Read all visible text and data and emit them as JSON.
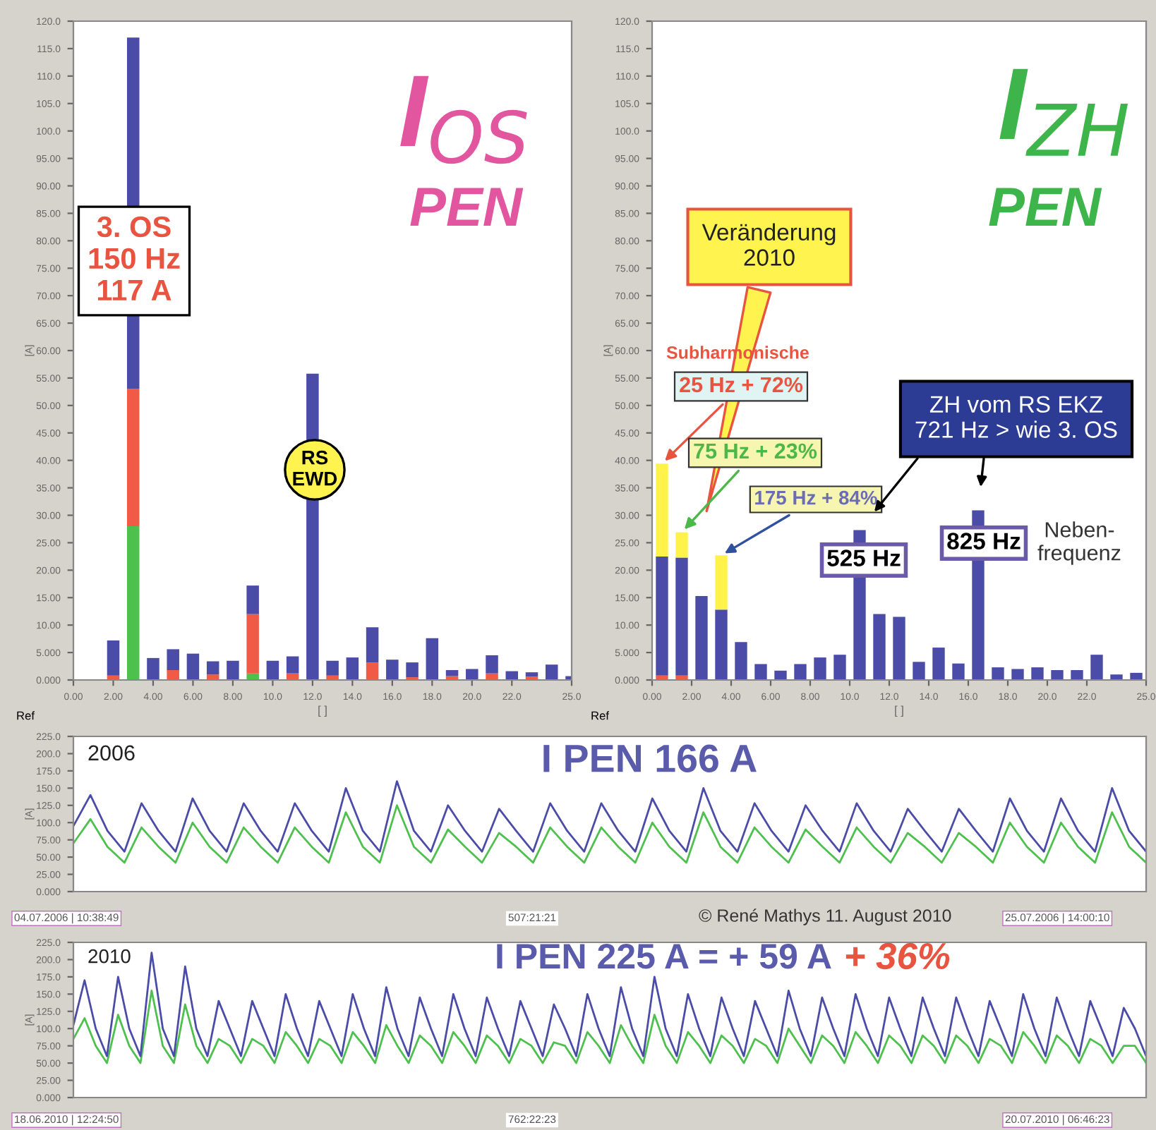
{
  "chart_data": [
    {
      "type": "bar",
      "title": "I$_{OS}$",
      "subtitle": "PEN",
      "xlabel": "[ ]",
      "ylabel": "[A]",
      "stacked": true,
      "x": [
        2,
        3,
        4,
        5,
        6,
        7,
        8,
        9,
        10,
        11,
        12,
        13,
        14,
        15,
        16,
        17,
        18,
        19,
        20,
        21,
        22,
        23,
        24,
        25
      ],
      "series": [
        {
          "color": "#4ec04e",
          "values": [
            0,
            28,
            0,
            0,
            0,
            0,
            0,
            1.2,
            0,
            0,
            0,
            0,
            0,
            0,
            0,
            0,
            0,
            0,
            0,
            0,
            0,
            0,
            0,
            0
          ]
        },
        {
          "color": "#f05a46",
          "values": [
            0.8,
            25,
            0,
            1.8,
            0,
            1,
            0,
            10.8,
            0,
            1.2,
            0,
            0.8,
            0,
            3.2,
            0,
            0.5,
            0,
            0.7,
            0,
            1.2,
            0,
            0.6,
            0,
            0
          ]
        },
        {
          "color": "#4b4ba8",
          "values": [
            6.4,
            64,
            4,
            3.8,
            4.8,
            2.4,
            3.5,
            5.2,
            3.5,
            3.1,
            55.8,
            2.7,
            4.1,
            6.4,
            3.7,
            2.7,
            7.6,
            1.1,
            2,
            3.3,
            1.6,
            0.8,
            2.8,
            0.7
          ]
        }
      ],
      "xlim": [
        0,
        25
      ],
      "xticks": [
        {
          "value": 0,
          "label": "0.00"
        },
        {
          "value": 2,
          "label": "2.00"
        },
        {
          "value": 4,
          "label": "4.00"
        },
        {
          "value": 6,
          "label": "6.00"
        },
        {
          "value": 8,
          "label": "8.00"
        },
        {
          "value": 10,
          "label": "10.0"
        },
        {
          "value": 12,
          "label": "12.0"
        },
        {
          "value": 14,
          "label": "14.0"
        },
        {
          "value": 16,
          "label": "16.0"
        },
        {
          "value": 18,
          "label": "18.0"
        },
        {
          "value": 20,
          "label": "20.0"
        },
        {
          "value": 22,
          "label": "22.0"
        },
        {
          "value": 25,
          "label": "25.0"
        }
      ],
      "ylim": [
        0,
        120
      ],
      "yticks": [
        {
          "value": 0,
          "label": "0.000"
        },
        {
          "value": 5,
          "label": "5.000"
        },
        {
          "value": 10,
          "label": "10.00"
        },
        {
          "value": 15,
          "label": "15.00"
        },
        {
          "value": 20,
          "label": "20.00"
        },
        {
          "value": 25,
          "label": "25.00"
        },
        {
          "value": 30,
          "label": "30.00"
        },
        {
          "value": 35,
          "label": "35.00"
        },
        {
          "value": 40,
          "label": "40.00"
        },
        {
          "value": 45,
          "label": "45.00"
        },
        {
          "value": 50,
          "label": "50.00"
        },
        {
          "value": 55,
          "label": "55.00"
        },
        {
          "value": 60,
          "label": "60.00"
        },
        {
          "value": 65,
          "label": "65.00"
        },
        {
          "value": 70,
          "label": "70.00"
        },
        {
          "value": 75,
          "label": "75.00"
        },
        {
          "value": 80,
          "label": "80.00"
        },
        {
          "value": 85,
          "label": "85.00"
        },
        {
          "value": 90,
          "label": "90.00"
        },
        {
          "value": 95,
          "label": "95.00"
        },
        {
          "value": 100,
          "label": "100.0"
        },
        {
          "value": 105,
          "label": "105.0"
        },
        {
          "value": 110,
          "label": "110.0"
        },
        {
          "value": 115,
          "label": "115.0"
        },
        {
          "value": 120,
          "label": "120.0"
        }
      ],
      "annotations": [
        "3. OS\n150 Hz\n117 A",
        "RS\nEWD",
        "Ref"
      ]
    },
    {
      "type": "bar",
      "title": "I$_{ZH}$",
      "subtitle": "PEN",
      "xlabel": "[ ]",
      "ylabel": "[A]",
      "stacked": true,
      "x": [
        0.5,
        1.5,
        2.5,
        3.5,
        4.5,
        5.5,
        6.5,
        7.5,
        8.5,
        9.5,
        10.5,
        11.5,
        12.5,
        13.5,
        14.5,
        15.5,
        16.5,
        17.5,
        18.5,
        19.5,
        20.5,
        21.5,
        22.5,
        23.5,
        24.5
      ],
      "series": [
        {
          "color": "#f05a46",
          "values": [
            0.8,
            0.8,
            0,
            0,
            0,
            0,
            0,
            0,
            0,
            0,
            0,
            0,
            0,
            0,
            0,
            0,
            0,
            0,
            0,
            0,
            0,
            0,
            0,
            0,
            0
          ]
        },
        {
          "color": "#4b4ba8",
          "values": [
            21.7,
            21.5,
            15.3,
            12.8,
            6.9,
            2.9,
            1.7,
            2.9,
            4.1,
            4.6,
            27.3,
            12,
            11.5,
            3.3,
            5.9,
            3,
            30.9,
            2.3,
            2,
            2.3,
            1.8,
            1.8,
            4.6,
            1,
            1.3
          ]
        },
        {
          "color": "#fff24a",
          "values": [
            16.9,
            4.6,
            0,
            9.9,
            0,
            0,
            0,
            0,
            0,
            0,
            0,
            0,
            0,
            0,
            0,
            0,
            0,
            0,
            0,
            0,
            0,
            0,
            0,
            0,
            0
          ]
        }
      ],
      "xlim": [
        0,
        25
      ],
      "xticks": [
        {
          "value": 0,
          "label": "0.00"
        },
        {
          "value": 2,
          "label": "2.00"
        },
        {
          "value": 4,
          "label": "4.00"
        },
        {
          "value": 6,
          "label": "6.00"
        },
        {
          "value": 8,
          "label": "8.00"
        },
        {
          "value": 10,
          "label": "10.0"
        },
        {
          "value": 12,
          "label": "12.0"
        },
        {
          "value": 14,
          "label": "14.0"
        },
        {
          "value": 16,
          "label": "16.0"
        },
        {
          "value": 18,
          "label": "18.0"
        },
        {
          "value": 20,
          "label": "20.0"
        },
        {
          "value": 22,
          "label": "22.0"
        },
        {
          "value": 25,
          "label": "25.0"
        }
      ],
      "ylim": [
        0,
        120
      ],
      "yticks": [
        {
          "value": 0,
          "label": "0.000"
        },
        {
          "value": 5,
          "label": "5.000"
        },
        {
          "value": 10,
          "label": "10.00"
        },
        {
          "value": 15,
          "label": "15.00"
        },
        {
          "value": 20,
          "label": "20.00"
        },
        {
          "value": 25,
          "label": "25.00"
        },
        {
          "value": 30,
          "label": "30.00"
        },
        {
          "value": 35,
          "label": "35.00"
        },
        {
          "value": 40,
          "label": "40.00"
        },
        {
          "value": 45,
          "label": "45.00"
        },
        {
          "value": 50,
          "label": "50.00"
        },
        {
          "value": 55,
          "label": "55.00"
        },
        {
          "value": 60,
          "label": "60.00"
        },
        {
          "value": 65,
          "label": "65.00"
        },
        {
          "value": 70,
          "label": "70.00"
        },
        {
          "value": 75,
          "label": "75.00"
        },
        {
          "value": 80,
          "label": "80.00"
        },
        {
          "value": 85,
          "label": "85.00"
        },
        {
          "value": 90,
          "label": "90.00"
        },
        {
          "value": 95,
          "label": "95.00"
        },
        {
          "value": 100,
          "label": "100.0"
        },
        {
          "value": 105,
          "label": "105.0"
        },
        {
          "value": 110,
          "label": "110.0"
        },
        {
          "value": 115,
          "label": "115.0"
        },
        {
          "value": 120,
          "label": "120.0"
        }
      ],
      "annotations": [
        "Veränderung\n2010",
        "Subharmonische",
        {
          "text": "25 Hz + 72%",
          "x": 0.5,
          "y": 39.4
        },
        {
          "text": "75 Hz + 23%",
          "x": 1.5,
          "y": 26.9
        },
        {
          "text": "175 Hz + 84%",
          "x": 3.5,
          "y": 22.7
        },
        "ZH vom RS EKZ\n721 Hz > wie 3. OS",
        {
          "text": "525 Hz",
          "x": 10.5,
          "y": 27.3
        },
        {
          "text": "825 Hz",
          "x": 16.5,
          "y": 30.9
        },
        "Neben-\nfrequenz",
        "Ref"
      ]
    },
    {
      "type": "line",
      "title": "I PEN 166 A",
      "ylabel": "[A]",
      "tick_labels": "y",
      "categories": [
        null,
        null,
        null,
        null,
        null,
        null,
        null,
        null,
        null,
        null,
        null,
        null,
        null,
        null,
        null,
        null,
        null,
        null,
        null,
        null,
        null,
        null,
        null,
        null,
        null,
        null,
        null,
        null,
        null,
        null,
        null,
        null,
        null,
        null,
        null,
        null,
        null,
        null,
        null,
        null,
        null,
        null,
        null,
        null,
        null,
        null,
        null,
        null,
        null,
        null,
        null,
        null,
        null,
        null,
        null,
        null,
        null,
        null,
        null,
        null,
        null,
        null,
        null,
        null
      ],
      "series": [
        {
          "color": "#4ec04e",
          "values": [
            70,
            105,
            65,
            42,
            93,
            65,
            42,
            100,
            65,
            42,
            93,
            65,
            42,
            93,
            65,
            42,
            115,
            65,
            42,
            125,
            65,
            42,
            90,
            65,
            42,
            85,
            65,
            42,
            93,
            65,
            42,
            93,
            65,
            42,
            100,
            65,
            42,
            115,
            65,
            42,
            93,
            65,
            42,
            90,
            65,
            42,
            93,
            65,
            42,
            85,
            65,
            42,
            85,
            65,
            42,
            100,
            65,
            42,
            100,
            65,
            42,
            115,
            65,
            42
          ]
        },
        {
          "color": "#4b4ba8",
          "values": [
            95,
            140,
            88,
            58,
            128,
            88,
            58,
            135,
            88,
            58,
            128,
            88,
            58,
            128,
            88,
            58,
            150,
            88,
            58,
            160,
            88,
            58,
            125,
            88,
            58,
            120,
            88,
            58,
            128,
            88,
            58,
            128,
            88,
            58,
            135,
            88,
            58,
            150,
            88,
            58,
            128,
            88,
            58,
            125,
            88,
            58,
            128,
            88,
            58,
            120,
            88,
            58,
            120,
            88,
            58,
            135,
            88,
            58,
            135,
            88,
            58,
            150,
            88,
            58
          ]
        }
      ],
      "ylim": [
        0,
        225
      ],
      "yticks": [
        {
          "value": 0,
          "label": "0.000"
        },
        {
          "value": 25,
          "label": "25.00"
        },
        {
          "value": 50,
          "label": "50.00"
        },
        {
          "value": 75,
          "label": "75.00"
        },
        {
          "value": 100,
          "label": "100.0"
        },
        {
          "value": 125,
          "label": "125.0"
        },
        {
          "value": 150,
          "label": "150.0"
        },
        {
          "value": 175,
          "label": "175.0"
        },
        {
          "value": 200,
          "label": "200.0"
        },
        {
          "value": 225,
          "label": "225.0"
        }
      ],
      "annotations": [
        "2006",
        "04.07.2006 | 10:38:49",
        "507:21:21",
        "© René Mathys 11. August 2010",
        "25.07.2006 | 14:00:10"
      ]
    },
    {
      "type": "line",
      "title": "I PEN 225 A = + 59 A",
      "ylabel": "[A]",
      "tick_labels": "y",
      "categories": [
        null,
        null,
        null,
        null,
        null,
        null,
        null,
        null,
        null,
        null,
        null,
        null,
        null,
        null,
        null,
        null,
        null,
        null,
        null,
        null,
        null,
        null,
        null,
        null,
        null,
        null,
        null,
        null,
        null,
        null,
        null,
        null,
        null,
        null,
        null,
        null,
        null,
        null,
        null,
        null,
        null,
        null,
        null,
        null,
        null,
        null,
        null,
        null,
        null,
        null,
        null,
        null,
        null,
        null,
        null,
        null,
        null,
        null,
        null,
        null,
        null,
        null,
        null,
        null,
        null,
        null,
        null,
        null,
        null,
        null,
        null,
        null,
        null,
        null,
        null,
        null,
        null,
        null,
        null,
        null,
        null,
        null,
        null,
        null,
        null,
        null,
        null,
        null,
        null,
        null,
        null,
        null,
        null,
        null,
        null,
        null,
        null
      ],
      "series": [
        {
          "color": "#4ec04e",
          "values": [
            85,
            115,
            75,
            50,
            120,
            75,
            50,
            155,
            75,
            50,
            135,
            75,
            50,
            85,
            75,
            50,
            85,
            75,
            50,
            95,
            75,
            50,
            85,
            75,
            50,
            95,
            75,
            50,
            105,
            75,
            50,
            90,
            75,
            50,
            95,
            75,
            50,
            90,
            75,
            50,
            85,
            75,
            50,
            80,
            75,
            50,
            95,
            75,
            50,
            105,
            75,
            50,
            120,
            75,
            50,
            95,
            75,
            50,
            90,
            75,
            50,
            85,
            75,
            50,
            100,
            75,
            50,
            90,
            75,
            50,
            95,
            75,
            50,
            90,
            75,
            50,
            90,
            75,
            50,
            90,
            75,
            50,
            85,
            75,
            50,
            95,
            75,
            50,
            90,
            75,
            50,
            85,
            75,
            50,
            75,
            75,
            50
          ]
        },
        {
          "color": "#4b4ba8",
          "values": [
            105,
            170,
            100,
            60,
            175,
            100,
            60,
            210,
            100,
            60,
            190,
            100,
            60,
            140,
            100,
            60,
            140,
            100,
            60,
            150,
            100,
            60,
            140,
            100,
            60,
            150,
            100,
            60,
            160,
            100,
            60,
            145,
            100,
            60,
            150,
            100,
            60,
            145,
            100,
            60,
            140,
            100,
            60,
            135,
            100,
            60,
            150,
            100,
            60,
            160,
            100,
            60,
            175,
            100,
            60,
            150,
            100,
            60,
            145,
            100,
            60,
            140,
            100,
            60,
            155,
            100,
            60,
            145,
            100,
            60,
            150,
            100,
            60,
            145,
            100,
            60,
            145,
            100,
            60,
            145,
            100,
            60,
            140,
            100,
            60,
            150,
            100,
            60,
            145,
            100,
            60,
            140,
            100,
            60,
            130,
            100,
            60
          ]
        }
      ],
      "ylim": [
        0,
        225
      ],
      "yticks": [
        {
          "value": 0,
          "label": "0.000"
        },
        {
          "value": 25,
          "label": "25.00"
        },
        {
          "value": 50,
          "label": "50.00"
        },
        {
          "value": 75,
          "label": "75.00"
        },
        {
          "value": 100,
          "label": "100.0"
        },
        {
          "value": 125,
          "label": "125.0"
        },
        {
          "value": 150,
          "label": "150.0"
        },
        {
          "value": 175,
          "label": "175.0"
        },
        {
          "value": 200,
          "label": "200.0"
        },
        {
          "value": 225,
          "label": "225.0"
        }
      ],
      "annotations": [
        "2010",
        "+ 36%",
        "18.06.2010 | 12:24:50",
        "762:22:23",
        "20.07.2010 | 06:46:23"
      ]
    }
  ]
}
